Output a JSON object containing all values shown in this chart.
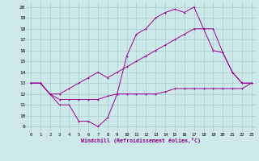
{
  "bg_color": "#cce8e8",
  "grid_color": "#aacccc",
  "line_color": "#990099",
  "xlabel": "Windchill (Refroidissement éolien,°C)",
  "xlim": [
    -0.5,
    23.5
  ],
  "ylim": [
    8.5,
    20.5
  ],
  "yticks": [
    9,
    10,
    11,
    12,
    13,
    14,
    15,
    16,
    17,
    18,
    19,
    20
  ],
  "xticks": [
    0,
    1,
    2,
    3,
    4,
    5,
    6,
    7,
    8,
    9,
    10,
    11,
    12,
    13,
    14,
    15,
    16,
    17,
    18,
    19,
    20,
    21,
    22,
    23
  ],
  "line1_x": [
    0,
    1,
    2,
    3,
    4,
    5,
    6,
    7,
    8,
    9,
    10,
    11,
    12,
    13,
    14,
    15,
    16,
    17,
    18,
    19,
    20,
    21,
    22,
    23
  ],
  "line1_y": [
    13,
    13,
    12,
    11,
    11,
    9.5,
    9.5,
    9,
    9.8,
    12,
    15.5,
    17.5,
    18,
    19,
    19.5,
    19.8,
    19.5,
    20,
    18,
    16,
    15.8,
    14,
    13,
    13
  ],
  "line2_x": [
    0,
    1,
    2,
    3,
    4,
    5,
    6,
    7,
    8,
    9,
    10,
    11,
    12,
    13,
    14,
    15,
    16,
    17,
    18,
    19,
    20,
    21,
    22,
    23
  ],
  "line2_y": [
    13,
    13,
    12,
    12,
    12.5,
    13,
    13.5,
    14,
    13.5,
    14,
    14.5,
    15,
    15.5,
    16,
    16.5,
    17,
    17.5,
    18,
    18,
    18,
    15.8,
    14,
    13,
    13
  ],
  "line3_x": [
    0,
    1,
    2,
    3,
    4,
    5,
    6,
    7,
    8,
    9,
    10,
    11,
    12,
    13,
    14,
    15,
    16,
    17,
    18,
    19,
    20,
    21,
    22,
    23
  ],
  "line3_y": [
    13,
    13,
    12,
    11.5,
    11.5,
    11.5,
    11.5,
    11.5,
    11.8,
    12,
    12,
    12,
    12,
    12,
    12.2,
    12.5,
    12.5,
    12.5,
    12.5,
    12.5,
    12.5,
    12.5,
    12.5,
    13
  ]
}
